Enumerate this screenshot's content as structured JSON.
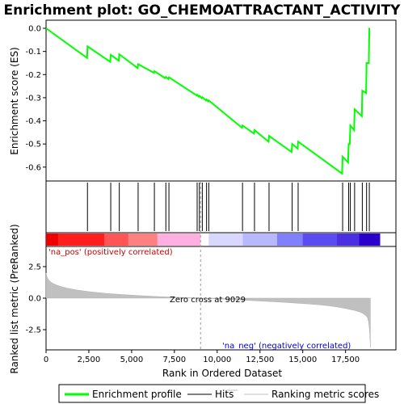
{
  "chart_data": {
    "type": "line",
    "title": "Enrichment plot: GO_CHEMOATTRACTANT_ACTIVITY",
    "xlabel": "Rank in Ordered Dataset",
    "xlim": [
      0,
      19500
    ],
    "x_ticks": [
      0,
      2500,
      5000,
      7500,
      10000,
      12500,
      15000,
      17500
    ],
    "x_tick_labels": [
      "0",
      "2,500",
      "5,000",
      "7,500",
      "10,000",
      "12,500",
      "15,000",
      "17,500"
    ],
    "es_panel": {
      "ylabel": "Enrichment score (ES)",
      "ylim": [
        -0.66,
        0.035
      ],
      "y_ticks": [
        0.0,
        -0.1,
        -0.2,
        -0.3,
        -0.4,
        -0.5,
        -0.6
      ],
      "y_tick_labels": [
        "0.0",
        "-0.1",
        "-0.2",
        "-0.3",
        "-0.4",
        "-0.5",
        "-0.6"
      ],
      "series": [
        {
          "name": "Enrichment profile",
          "color": "#00ff00",
          "x": [
            0,
            2400,
            2420,
            3750,
            3780,
            4250,
            4280,
            5350,
            5380,
            6300,
            6330,
            6950,
            7000,
            7150,
            7180,
            8800,
            8830,
            8930,
            8960,
            9100,
            9130,
            9350,
            9380,
            9480,
            9510,
            11450,
            11480,
            12150,
            12180,
            13000,
            13030,
            14350,
            14380,
            14700,
            14730,
            17300,
            17330,
            17650,
            17680,
            17750,
            17780,
            18000,
            18030,
            18450,
            18480,
            18700,
            18730,
            18860,
            18890
          ],
          "y": [
            0.0,
            -0.128,
            -0.078,
            -0.145,
            -0.115,
            -0.14,
            -0.112,
            -0.172,
            -0.155,
            -0.192,
            -0.185,
            -0.215,
            -0.21,
            -0.22,
            -0.212,
            -0.29,
            -0.287,
            -0.296,
            -0.292,
            -0.302,
            -0.298,
            -0.312,
            -0.308,
            -0.316,
            -0.312,
            -0.43,
            -0.42,
            -0.455,
            -0.44,
            -0.49,
            -0.465,
            -0.535,
            -0.5,
            -0.52,
            -0.49,
            -0.628,
            -0.555,
            -0.58,
            -0.5,
            -0.5,
            -0.42,
            -0.44,
            -0.35,
            -0.38,
            -0.27,
            -0.28,
            -0.15,
            -0.15,
            0.002
          ]
        }
      ]
    },
    "hits": {
      "name": "Hits",
      "x": [
        2420,
        3780,
        4280,
        5380,
        6330,
        7000,
        7180,
        8830,
        8960,
        9130,
        9380,
        9510,
        11480,
        12180,
        13030,
        14380,
        14730,
        17330,
        17680,
        17780,
        18030,
        18480,
        18730,
        18890
      ]
    },
    "metric_panel": {
      "ylabel": "Ranked list metric (PreRanked)",
      "ylim": [
        -4.1,
        4.1
      ],
      "y_ticks": [
        2.5,
        0.0,
        -2.5
      ],
      "y_tick_labels": [
        "2.5",
        "0.0",
        "-2.5"
      ],
      "series": [
        {
          "name": "Ranking metric scores",
          "color": "#c0c0c0",
          "x": [
            0,
            50,
            150,
            300,
            500,
            800,
            1200,
            1800,
            2500,
            3500,
            4500,
            5500,
            6500,
            7500,
            8500,
            9029,
            10000,
            11000,
            12000,
            13000,
            14000,
            15000,
            16000,
            16500,
            17000,
            17500,
            18000,
            18300,
            18500,
            18700,
            18800,
            18850,
            18900,
            18950
          ],
          "y": [
            2.0,
            1.7,
            1.45,
            1.25,
            1.1,
            0.95,
            0.8,
            0.65,
            0.52,
            0.38,
            0.28,
            0.2,
            0.13,
            0.08,
            0.03,
            0.0,
            -0.06,
            -0.12,
            -0.19,
            -0.26,
            -0.34,
            -0.43,
            -0.53,
            -0.6,
            -0.7,
            -0.82,
            -0.97,
            -1.08,
            -1.2,
            -1.4,
            -1.6,
            -1.9,
            -2.5,
            -3.9
          ]
        }
      ],
      "zero_cross_label": "Zero cross at 9029",
      "zero_cross_x": 9029,
      "na_pos_label": "'na_pos' (positively correlated)",
      "na_neg_label": "'na_neg' (negatively correlated)",
      "pos_color": "#cc0000",
      "neg_color": "#0000cc"
    },
    "colorbar_stops": [
      {
        "x": 0,
        "color": "#ee0000"
      },
      {
        "x": 700,
        "color": "#ff1f1f"
      },
      {
        "x": 3400,
        "color": "#ff5555"
      },
      {
        "x": 4800,
        "color": "#ff8080"
      },
      {
        "x": 6500,
        "color": "#ffb0e0"
      },
      {
        "x": 9029,
        "color": "#ffffff"
      },
      {
        "x": 9500,
        "color": "#d8d8ff"
      },
      {
        "x": 11500,
        "color": "#b8b8ff"
      },
      {
        "x": 13500,
        "color": "#8080ff"
      },
      {
        "x": 15000,
        "color": "#5a4cf0"
      },
      {
        "x": 17000,
        "color": "#4a30e0"
      },
      {
        "x": 18300,
        "color": "#2a00cc"
      },
      {
        "x": 19500,
        "color": "#2a00cc"
      }
    ],
    "legend": {
      "placement": "bottom",
      "items": [
        {
          "label": "Enrichment profile",
          "color": "#00ff00",
          "kind": "thick-line"
        },
        {
          "label": "Hits",
          "color": "#000000",
          "kind": "line"
        },
        {
          "label": "Ranking metric scores",
          "color": "#c0c0c0",
          "kind": "line"
        }
      ]
    }
  }
}
